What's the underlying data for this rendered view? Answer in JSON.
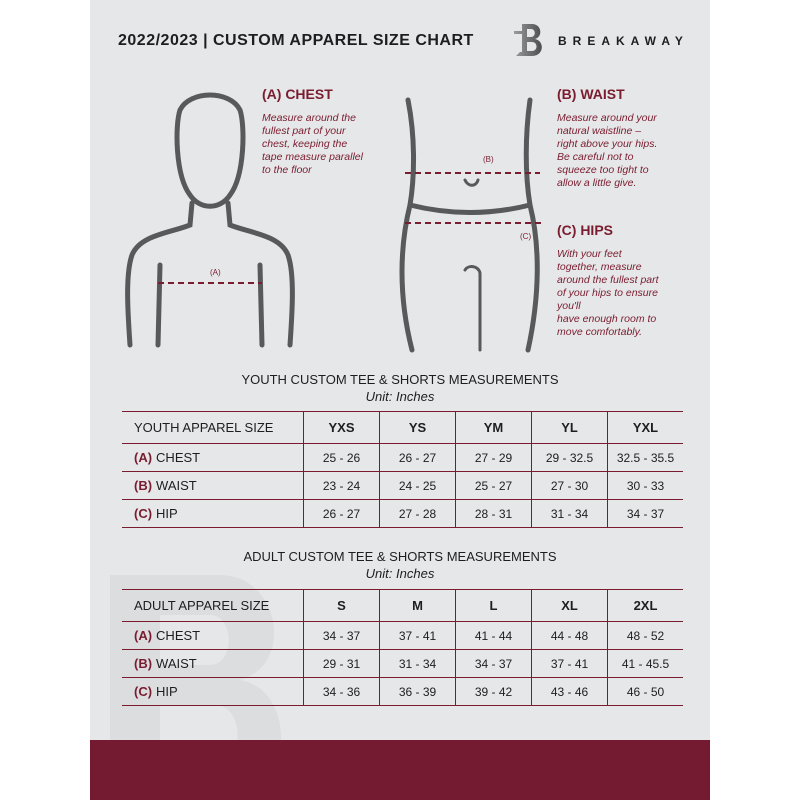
{
  "header": {
    "title": "2022/2023  |  CUSTOM APPAREL SIZE CHART",
    "brand": "BREAKAWAY",
    "logo_letter": "B"
  },
  "chest": {
    "heading": "(A) CHEST",
    "description": "Measure around the\nfullest part of your\nchest, keeping the\ntape measure parallel\nto the floor",
    "marker": "(A)"
  },
  "waist": {
    "heading": "(B) WAIST",
    "description": "Measure around your\nnatural waistline –\nright above your hips.\nBe careful not to\nsqueeze too tight to\nallow a little give.",
    "marker": "(B)"
  },
  "hips": {
    "heading": "(C) HIPS",
    "description": "With your feet\ntogether, measure\naround the fullest part\nof your hips to ensure\nyou'll\nhave enough room to\nmove comfortably.",
    "marker": "(C)"
  },
  "youth": {
    "title": "YOUTH CUSTOM TEE & SHORTS MEASUREMENTS",
    "unit": "Unit: Inches",
    "size_label": "YOUTH APPAREL SIZE",
    "sizes": [
      "YXS",
      "YS",
      "YM",
      "YL",
      "YXL"
    ],
    "rows": [
      {
        "tag": "(A)",
        "name": "CHEST",
        "values": [
          "25 - 26",
          "26 - 27",
          "27 - 29",
          "29 - 32.5",
          "32.5 - 35.5"
        ]
      },
      {
        "tag": "(B)",
        "name": "WAIST",
        "values": [
          "23 - 24",
          "24 - 25",
          "25 - 27",
          "27 - 30",
          "30 - 33"
        ]
      },
      {
        "tag": "(C)",
        "name": "HIP",
        "values": [
          "26 - 27",
          "27 - 28",
          "28 - 31",
          "31 - 34",
          "34 - 37"
        ]
      }
    ]
  },
  "adult": {
    "title": "ADULT CUSTOM TEE & SHORTS MEASUREMENTS",
    "unit": "Unit: Inches",
    "size_label": "ADULT APPAREL SIZE",
    "sizes": [
      "S",
      "M",
      "L",
      "XL",
      "2XL"
    ],
    "rows": [
      {
        "tag": "(A)",
        "name": "CHEST",
        "values": [
          "34 - 37",
          "37 - 41",
          "41 - 44",
          "44 - 48",
          "48 - 52"
        ]
      },
      {
        "tag": "(B)",
        "name": "WAIST",
        "values": [
          "29 - 31",
          "31 - 34",
          "34 - 37",
          "37 - 41",
          "41 - 45.5"
        ]
      },
      {
        "tag": "(C)",
        "name": "HIP",
        "values": [
          "34 - 36",
          "36 - 39",
          "39 - 42",
          "43 - 46",
          "46 - 50"
        ]
      }
    ]
  },
  "colors": {
    "accent": "#7a1c30",
    "background": "#e6e7e8",
    "footer": "#741b31"
  }
}
